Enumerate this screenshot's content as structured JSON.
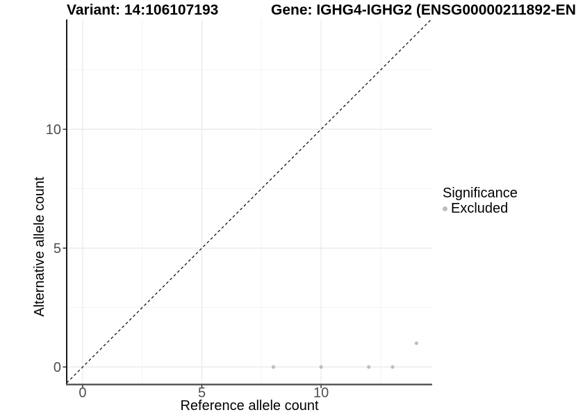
{
  "chart_data": {
    "type": "scatter",
    "titles": {
      "left": "Variant: 14:106107193",
      "right": "Gene: IGHG4-IGHG2 (ENSG00000211892-EN"
    },
    "xlabel": "Reference allele count",
    "ylabel": "Alternative allele count",
    "xlim": [
      -0.67,
      14.66
    ],
    "ylim": [
      -0.73,
      14.62
    ],
    "x_ticks": {
      "major": [
        0,
        5,
        10
      ],
      "minor": [
        2.5,
        7.5,
        12.5
      ]
    },
    "y_ticks": {
      "major": [
        0,
        5,
        10
      ],
      "minor": [
        2.5,
        7.5,
        12.5
      ]
    },
    "grid": true,
    "identity_line": {
      "style": "dashed",
      "color": "#000000"
    },
    "series": [
      {
        "name": "Excluded",
        "color": "#bdbdbd",
        "points": [
          [
            8,
            0
          ],
          [
            10,
            0
          ],
          [
            12,
            0
          ],
          [
            13,
            0
          ],
          [
            14,
            1
          ]
        ]
      }
    ],
    "legend": {
      "title": "Significance",
      "position": "right",
      "items": [
        {
          "label": "Excluded",
          "color": "#bdbdbd",
          "marker": "circle-icon"
        }
      ]
    },
    "colors": {
      "background": "#ffffff",
      "grid_major": "#e8e8e8",
      "grid_minor": "#f4f4f4",
      "axis_line_left": "#1a1a1a",
      "axis_line_bottom": "#595959",
      "tick_mark": "#333333",
      "tick_text": "#4d4d4d",
      "point": "#bdbdbd"
    }
  }
}
